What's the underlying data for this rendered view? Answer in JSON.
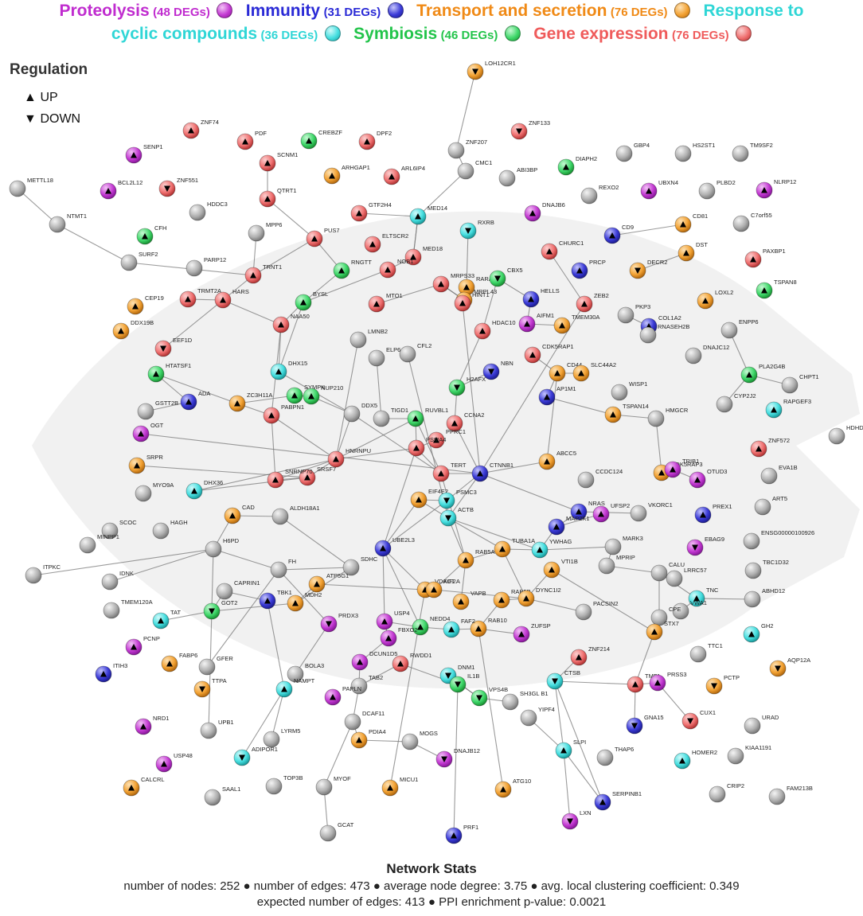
{
  "legend": {
    "categories": [
      {
        "name": "Proteolysis",
        "count": "(48 DEGs)",
        "color": "#c02ccf",
        "ball": "#c43ad3"
      },
      {
        "name": "Immunity",
        "count": "(31 DEGs)",
        "color": "#2a2ad6",
        "ball": "#3b3bd8"
      },
      {
        "name": "Transport and secretion",
        "count": "(76 DEGs)",
        "color": "#f08a16",
        "ball": "#f3a233"
      },
      {
        "name": "Response to cyclic compounds",
        "name_part1": "Response to",
        "name_part2": "cyclic compounds",
        "count": "(36 DEGs)",
        "color": "#2fd6d6",
        "ball": "#46dfe0"
      },
      {
        "name": "Symbiosis",
        "count": "(46 DEGs)",
        "color": "#22c44a",
        "ball": "#3fd86a"
      },
      {
        "name": "Gene expression",
        "count": "(76 DEGs)",
        "color": "#ef5b5b",
        "ball": "#f07070"
      }
    ]
  },
  "regulation": {
    "title": "Regulation",
    "up": {
      "symbol": "▲",
      "label": "UP"
    },
    "down": {
      "symbol": "▼",
      "label": "DOWN"
    }
  },
  "stats": {
    "title": "Network Stats",
    "line1": "number of nodes: 252 ● number of edges: 473 ● average node degree: 3.75 ● avg. local clustering coefficient: 0.349",
    "line2": "expected number of edges: 413 ● PPI enrichment p-value: 0.0021"
  },
  "nodes": [
    {
      "id": "LOH12CR1",
      "c": "o",
      "d": "down"
    },
    {
      "id": "ZNF74",
      "c": "r",
      "d": "up"
    },
    {
      "id": "PDF",
      "c": "r",
      "d": "up"
    },
    {
      "id": "CREBZF",
      "c": "g",
      "d": "up"
    },
    {
      "id": "DPF2",
      "c": "r",
      "d": "up"
    },
    {
      "id": "ZNF207",
      "c": "n",
      "d": ""
    },
    {
      "id": "ZNF133",
      "c": "r",
      "d": "down"
    },
    {
      "id": "SENP1",
      "c": "p",
      "d": "up"
    },
    {
      "id": "SCNM1",
      "c": "r",
      "d": "up"
    },
    {
      "id": "CMC1",
      "c": "n",
      "d": ""
    },
    {
      "id": "GBP4",
      "c": "n",
      "d": ""
    },
    {
      "id": "HS2ST1",
      "c": "n",
      "d": ""
    },
    {
      "id": "TM9SF2",
      "c": "n",
      "d": ""
    },
    {
      "id": "METTL18",
      "c": "n",
      "d": ""
    },
    {
      "id": "BCL2L12",
      "c": "p",
      "d": "up"
    },
    {
      "id": "ZNF551",
      "c": "r",
      "d": "down"
    },
    {
      "id": "ARHGAP1",
      "c": "o",
      "d": "up"
    },
    {
      "id": "ARL6IP4",
      "c": "r",
      "d": "up"
    },
    {
      "id": "ABI3BP",
      "c": "n",
      "d": ""
    },
    {
      "id": "DIAPH2",
      "c": "g",
      "d": "up"
    },
    {
      "id": "UBXN4",
      "c": "p",
      "d": "up"
    },
    {
      "id": "NLRP12",
      "c": "p",
      "d": "up"
    },
    {
      "id": "QTRT1",
      "c": "r",
      "d": "up"
    },
    {
      "id": "REXO2",
      "c": "n",
      "d": ""
    },
    {
      "id": "PLBD2",
      "c": "n",
      "d": ""
    },
    {
      "id": "NTMT1",
      "c": "n",
      "d": ""
    },
    {
      "id": "HDDC3",
      "c": "n",
      "d": ""
    },
    {
      "id": "GTF2H4",
      "c": "r",
      "d": "up"
    },
    {
      "id": "MED14",
      "c": "c",
      "d": "up"
    },
    {
      "id": "DNAJB6",
      "c": "p",
      "d": "up"
    },
    {
      "id": "C7orf55",
      "c": "n",
      "d": ""
    },
    {
      "id": "CFH",
      "c": "g",
      "d": "up"
    },
    {
      "id": "MPP6",
      "c": "n",
      "d": ""
    },
    {
      "id": "PUS7",
      "c": "r",
      "d": "up"
    },
    {
      "id": "ELTSCR2",
      "c": "r",
      "d": "up"
    },
    {
      "id": "RXRB",
      "c": "c",
      "d": "down"
    },
    {
      "id": "CD9",
      "c": "b",
      "d": "up"
    },
    {
      "id": "CD81",
      "c": "o",
      "d": "up"
    },
    {
      "id": "SURF2",
      "c": "n",
      "d": ""
    },
    {
      "id": "PARP12",
      "c": "n",
      "d": ""
    },
    {
      "id": "MED18",
      "c": "r",
      "d": "up"
    },
    {
      "id": "CHURC1",
      "c": "r",
      "d": "up"
    },
    {
      "id": "DST",
      "c": "o",
      "d": "up"
    },
    {
      "id": "PAXBP1",
      "c": "r",
      "d": "up"
    },
    {
      "id": "TRNT1",
      "c": "r",
      "d": "up"
    },
    {
      "id": "RNGTT",
      "c": "g",
      "d": "up"
    },
    {
      "id": "NOB1",
      "c": "r",
      "d": "up"
    },
    {
      "id": "PRCP",
      "c": "b",
      "d": "up"
    },
    {
      "id": "DECR2",
      "c": "o",
      "d": "down"
    },
    {
      "id": "CEP19",
      "c": "o",
      "d": "up"
    },
    {
      "id": "TRMT2A",
      "c": "r",
      "d": "up"
    },
    {
      "id": "BYSL",
      "c": "g",
      "d": "up"
    },
    {
      "id": "MRPS33",
      "c": "r",
      "d": "up"
    },
    {
      "id": "RARA",
      "c": "o",
      "d": "up"
    },
    {
      "id": "CBX5",
      "c": "g",
      "d": "down"
    },
    {
      "id": "HELLS",
      "c": "b",
      "d": "up"
    },
    {
      "id": "ZEB2",
      "c": "r",
      "d": "up"
    },
    {
      "id": "TSPAN8",
      "c": "g",
      "d": "up"
    },
    {
      "id": "DDX19B",
      "c": "o",
      "d": "up"
    },
    {
      "id": "HARS",
      "c": "r",
      "d": "up"
    },
    {
      "id": "MTO1",
      "c": "r",
      "d": "up"
    },
    {
      "id": "MRPL43",
      "c": "o",
      "d": "up"
    },
    {
      "id": "AIFM1",
      "c": "p",
      "d": "up"
    },
    {
      "id": "LOXL2",
      "c": "o",
      "d": "up"
    },
    {
      "id": "EEF1D",
      "c": "r",
      "d": "down"
    },
    {
      "id": "NAA50",
      "c": "r",
      "d": "up"
    },
    {
      "id": "HINT1",
      "c": "r",
      "d": "up"
    },
    {
      "id": "TMEM30A",
      "c": "o",
      "d": "up"
    },
    {
      "id": "PKP3",
      "c": "n",
      "d": ""
    },
    {
      "id": "ENPP6",
      "c": "n",
      "d": ""
    },
    {
      "id": "LMNB2",
      "c": "n",
      "d": ""
    },
    {
      "id": "HDAC10",
      "c": "r",
      "d": "up"
    },
    {
      "id": "COL1A2",
      "c": "b",
      "d": "up"
    },
    {
      "id": "HTATSF1",
      "c": "g",
      "d": "up"
    },
    {
      "id": "DHX15",
      "c": "c",
      "d": "up"
    },
    {
      "id": "CFL2",
      "c": "n",
      "d": ""
    },
    {
      "id": "ELP6",
      "c": "n",
      "d": ""
    },
    {
      "id": "CDK5RAP1",
      "c": "r",
      "d": "up"
    },
    {
      "id": "RNASEH2B",
      "c": "n",
      "d": ""
    },
    {
      "id": "DNAJC12",
      "c": "n",
      "d": ""
    },
    {
      "id": "ADA",
      "c": "b",
      "d": "up"
    },
    {
      "id": "H2AFX",
      "c": "g",
      "d": "down"
    },
    {
      "id": "NBN",
      "c": "b",
      "d": "down"
    },
    {
      "id": "CD44",
      "c": "o",
      "d": "up"
    },
    {
      "id": "SLC44A2",
      "c": "o",
      "d": "up"
    },
    {
      "id": "PLA2G4B",
      "c": "g",
      "d": "up"
    },
    {
      "id": "CHPT1",
      "c": "n",
      "d": ""
    },
    {
      "id": "GSTT2B",
      "c": "n",
      "d": ""
    },
    {
      "id": "SYMPK",
      "c": "g",
      "d": "up"
    },
    {
      "id": "NUP210",
      "c": "g",
      "d": "up"
    },
    {
      "id": "AP1M1",
      "c": "b",
      "d": "up"
    },
    {
      "id": "WISP1",
      "c": "n",
      "d": ""
    },
    {
      "id": "ZC3H11A",
      "c": "o",
      "d": "up"
    },
    {
      "id": "DDX5",
      "c": "n",
      "d": ""
    },
    {
      "id": "TIGD1",
      "c": "n",
      "d": ""
    },
    {
      "id": "RUVBL1",
      "c": "g",
      "d": "up"
    },
    {
      "id": "TSPAN14",
      "c": "o",
      "d": "up"
    },
    {
      "id": "HMGCR",
      "c": "n",
      "d": ""
    },
    {
      "id": "CYP2J2",
      "c": "n",
      "d": ""
    },
    {
      "id": "RAPGEF3",
      "c": "c",
      "d": "up"
    },
    {
      "id": "OGT",
      "c": "p",
      "d": "up"
    },
    {
      "id": "PABPN1",
      "c": "r",
      "d": "up"
    },
    {
      "id": "CCNA2",
      "c": "r",
      "d": "up"
    },
    {
      "id": "PPRC1",
      "c": "r",
      "d": "up"
    },
    {
      "id": "HDHD",
      "c": "n",
      "d": ""
    },
    {
      "id": "SRPR",
      "c": "o",
      "d": "up"
    },
    {
      "id": "HNRNPU",
      "c": "r",
      "d": "up"
    },
    {
      "id": "PSMA4",
      "c": "r",
      "d": "up"
    },
    {
      "id": "ZNF572",
      "c": "r",
      "d": "up"
    },
    {
      "id": "CDK5RAP3",
      "c": "o",
      "d": "up"
    },
    {
      "id": "TRIB1",
      "c": "p",
      "d": "up"
    },
    {
      "id": "DHX36",
      "c": "c",
      "d": "up"
    },
    {
      "id": "SRSF7",
      "c": "r",
      "d": "up"
    },
    {
      "id": "SNRNP70",
      "c": "r",
      "d": "up"
    },
    {
      "id": "TERT",
      "c": "r",
      "d": "up"
    },
    {
      "id": "CTNNB1",
      "c": "b",
      "d": "up"
    },
    {
      "id": "ABCC5",
      "c": "o",
      "d": "up"
    },
    {
      "id": "CCDC124",
      "c": "n",
      "d": ""
    },
    {
      "id": "EVA1B",
      "c": "n",
      "d": ""
    },
    {
      "id": "OTUD3",
      "c": "p",
      "d": "up"
    },
    {
      "id": "MYO9A",
      "c": "n",
      "d": ""
    },
    {
      "id": "CAD",
      "c": "o",
      "d": "up"
    },
    {
      "id": "ALDH18A1",
      "c": "n",
      "d": ""
    },
    {
      "id": "EIF4E2",
      "c": "o",
      "d": "up"
    },
    {
      "id": "PSMC3",
      "c": "c",
      "d": "down"
    },
    {
      "id": "ACTB",
      "c": "c",
      "d": "down"
    },
    {
      "id": "NRAS",
      "c": "b",
      "d": "up"
    },
    {
      "id": "UFSP2",
      "c": "p",
      "d": "up"
    },
    {
      "id": "VKORC1",
      "c": "n",
      "d": ""
    },
    {
      "id": "PREX1",
      "c": "b",
      "d": "up"
    },
    {
      "id": "ART5",
      "c": "n",
      "d": ""
    },
    {
      "id": "SCOC",
      "c": "n",
      "d": ""
    },
    {
      "id": "HAGH",
      "c": "n",
      "d": ""
    },
    {
      "id": "MAP2K1",
      "c": "b",
      "d": "up"
    },
    {
      "id": "MINPP1",
      "c": "n",
      "d": ""
    },
    {
      "id": "H6PD",
      "c": "n",
      "d": ""
    },
    {
      "id": "UBE2L3",
      "c": "b",
      "d": "up"
    },
    {
      "id": "TUBA1A",
      "c": "o",
      "d": "up"
    },
    {
      "id": "YWHAG",
      "c": "c",
      "d": "up"
    },
    {
      "id": "MARK3",
      "c": "n",
      "d": ""
    },
    {
      "id": "EBAG9",
      "c": "p",
      "d": "down"
    },
    {
      "id": "ENSG00000100926",
      "c": "n",
      "d": ""
    },
    {
      "id": "ITPKC",
      "c": "n",
      "d": ""
    },
    {
      "id": "IDNK",
      "c": "n",
      "d": ""
    },
    {
      "id": "FH",
      "c": "n",
      "d": ""
    },
    {
      "id": "SDHC",
      "c": "n",
      "d": ""
    },
    {
      "id": "RAB5A",
      "c": "o",
      "d": "up"
    },
    {
      "id": "VTI1B",
      "c": "o",
      "d": "up"
    },
    {
      "id": "MPRIP",
      "c": "n",
      "d": ""
    },
    {
      "id": "CALU",
      "c": "n",
      "d": ""
    },
    {
      "id": "LRRC57",
      "c": "n",
      "d": ""
    },
    {
      "id": "TBC1D32",
      "c": "n",
      "d": ""
    },
    {
      "id": "TMEM120A",
      "c": "n",
      "d": ""
    },
    {
      "id": "CAPRIN1",
      "c": "n",
      "d": ""
    },
    {
      "id": "TBK1",
      "c": "b",
      "d": "up"
    },
    {
      "id": "ATP5G1",
      "c": "o",
      "d": "up"
    },
    {
      "id": "VDAC1",
      "c": "o",
      "d": "up"
    },
    {
      "id": "KIF2A",
      "c": "o",
      "d": "up"
    },
    {
      "id": "RAB5B",
      "c": "o",
      "d": "up"
    },
    {
      "id": "DYNC1I2",
      "c": "o",
      "d": "up"
    },
    {
      "id": "TNC",
      "c": "c",
      "d": "up"
    },
    {
      "id": "ABHD12",
      "c": "n",
      "d": ""
    },
    {
      "id": "GOT2",
      "c": "g",
      "d": "down"
    },
    {
      "id": "MDH2",
      "c": "o",
      "d": "up"
    },
    {
      "id": "VAPB",
      "c": "o",
      "d": "up"
    },
    {
      "id": "PACSIN2",
      "c": "n",
      "d": ""
    },
    {
      "id": "VWA1",
      "c": "n",
      "d": ""
    },
    {
      "id": "TAT",
      "c": "c",
      "d": "up"
    },
    {
      "id": "PRDX3",
      "c": "p",
      "d": "down"
    },
    {
      "id": "USP4",
      "c": "p",
      "d": "up"
    },
    {
      "id": "NEDD4",
      "c": "g",
      "d": "up"
    },
    {
      "id": "RAB10",
      "c": "o",
      "d": "up"
    },
    {
      "id": "ZUFSP",
      "c": "p",
      "d": "up"
    },
    {
      "id": "CPE",
      "c": "n",
      "d": ""
    },
    {
      "id": "STX7",
      "c": "o",
      "d": "up"
    },
    {
      "id": "GH2",
      "c": "c",
      "d": "up"
    },
    {
      "id": "PCNP",
      "c": "p",
      "d": "up"
    },
    {
      "id": "FABP6",
      "c": "o",
      "d": "up"
    },
    {
      "id": "FBXO2",
      "c": "p",
      "d": "up"
    },
    {
      "id": "FAF2",
      "c": "c",
      "d": "up"
    },
    {
      "id": "ZNF214",
      "c": "r",
      "d": "up"
    },
    {
      "id": "TTC1",
      "c": "n",
      "d": ""
    },
    {
      "id": "AQP12A",
      "c": "o",
      "d": "down"
    },
    {
      "id": "ITIH3",
      "c": "b",
      "d": "up"
    },
    {
      "id": "GFER",
      "c": "n",
      "d": ""
    },
    {
      "id": "BOLA3",
      "c": "n",
      "d": ""
    },
    {
      "id": "DCUN1D5",
      "c": "p",
      "d": "up"
    },
    {
      "id": "RWDD1",
      "c": "r",
      "d": "up"
    },
    {
      "id": "TTPA",
      "c": "o",
      "d": "down"
    },
    {
      "id": "NAMPT",
      "c": "c",
      "d": "up"
    },
    {
      "id": "TAB2",
      "c": "n",
      "d": ""
    },
    {
      "id": "DNM1",
      "c": "c",
      "d": "down"
    },
    {
      "id": "IL1B",
      "c": "g",
      "d": "down"
    },
    {
      "id": "CTSB",
      "c": "c",
      "d": "down"
    },
    {
      "id": "TMF1",
      "c": "r",
      "d": "up"
    },
    {
      "id": "PRSS3",
      "c": "p",
      "d": "up"
    },
    {
      "id": "PCTP",
      "c": "o",
      "d": "down"
    },
    {
      "id": "PAPLN",
      "c": "p",
      "d": "up"
    },
    {
      "id": "VPS4B",
      "c": "g",
      "d": "down"
    },
    {
      "id": "SH3GL B1",
      "c": "n",
      "d": ""
    },
    {
      "id": "CUX1",
      "c": "r",
      "d": "down"
    },
    {
      "id": "NRD1",
      "c": "p",
      "d": "up"
    },
    {
      "id": "UPB1",
      "c": "n",
      "d": ""
    },
    {
      "id": "DCAF11",
      "c": "n",
      "d": ""
    },
    {
      "id": "YIPF4",
      "c": "n",
      "d": ""
    },
    {
      "id": "GNA15",
      "c": "b",
      "d": "down"
    },
    {
      "id": "URAD",
      "c": "n",
      "d": ""
    },
    {
      "id": "LYRM5",
      "c": "n",
      "d": ""
    },
    {
      "id": "PDIA4",
      "c": "o",
      "d": "up"
    },
    {
      "id": "MOGS",
      "c": "n",
      "d": ""
    },
    {
      "id": "DNAJB12",
      "c": "p",
      "d": "down"
    },
    {
      "id": "SLPI",
      "c": "c",
      "d": "up"
    },
    {
      "id": "THAP6",
      "c": "n",
      "d": ""
    },
    {
      "id": "HOMER2",
      "c": "c",
      "d": "up"
    },
    {
      "id": "KIAA1191",
      "c": "n",
      "d": ""
    },
    {
      "id": "USP48",
      "c": "p",
      "d": "up"
    },
    {
      "id": "ADIPOR1",
      "c": "c",
      "d": "down"
    },
    {
      "id": "CALCRL",
      "c": "o",
      "d": "up"
    },
    {
      "id": "TOP3B",
      "c": "n",
      "d": ""
    },
    {
      "id": "SAAL1",
      "c": "n",
      "d": ""
    },
    {
      "id": "MYOF",
      "c": "n",
      "d": ""
    },
    {
      "id": "MICU1",
      "c": "o",
      "d": "up"
    },
    {
      "id": "ATG10",
      "c": "o",
      "d": "up"
    },
    {
      "id": "SERPINB1",
      "c": "b",
      "d": "up"
    },
    {
      "id": "CRIP2",
      "c": "n",
      "d": ""
    },
    {
      "id": "FAM213B",
      "c": "n",
      "d": ""
    },
    {
      "id": "LXN",
      "c": "p",
      "d": "down"
    },
    {
      "id": "PRF1",
      "c": "b",
      "d": "up"
    },
    {
      "id": "GCAT",
      "c": "n",
      "d": ""
    }
  ]
}
